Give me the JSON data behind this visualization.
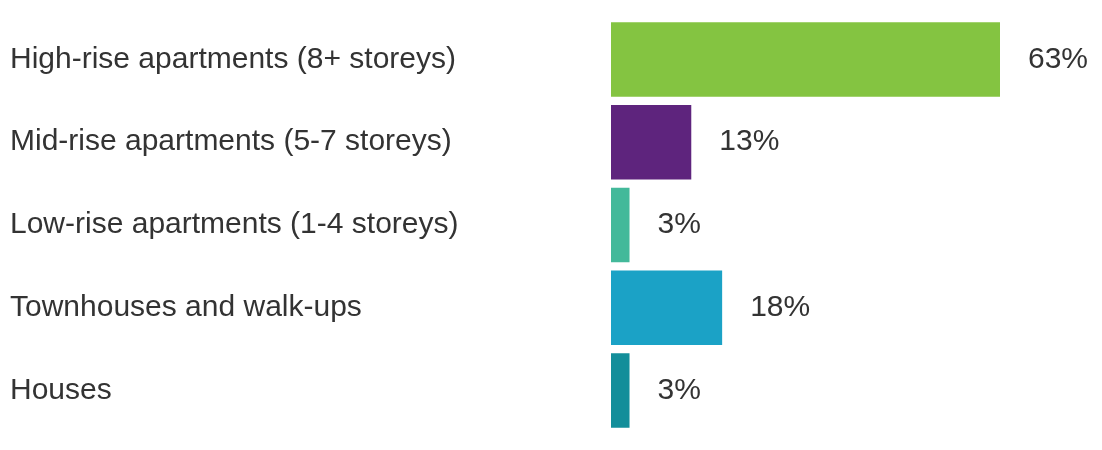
{
  "chart_data": {
    "type": "bar",
    "orientation": "horizontal",
    "categories": [
      "High-rise apartments (8+ storeys)",
      "Mid-rise apartments (5-7 storeys)",
      "Low-rise apartments (1-4 storeys)",
      "Townhouses and walk-ups",
      "Houses"
    ],
    "values": [
      63,
      13,
      3,
      18,
      3
    ],
    "colors": [
      "#84c441",
      "#5e247d",
      "#43b99a",
      "#1ba2c6",
      "#138e9a"
    ],
    "value_labels": [
      "63%",
      "13%",
      "3%",
      "18%",
      "3%"
    ]
  }
}
